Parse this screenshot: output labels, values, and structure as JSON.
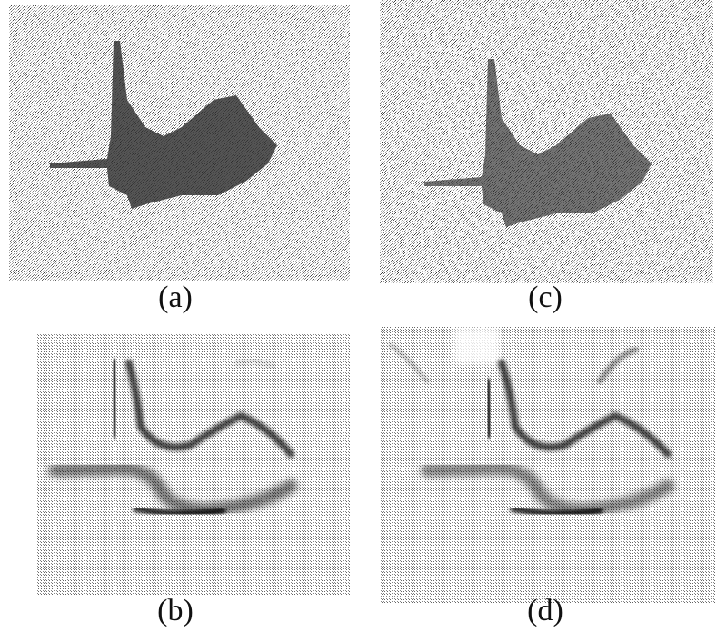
{
  "figure": {
    "panels": [
      {
        "label": "(a)"
      },
      {
        "label": "(c)"
      },
      {
        "label": "(b)"
      },
      {
        "label": "(d)"
      }
    ]
  }
}
